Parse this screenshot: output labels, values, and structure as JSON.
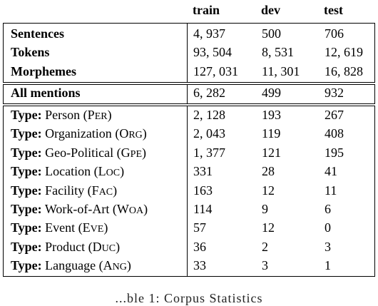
{
  "columns": {
    "train": "train",
    "dev": "dev",
    "test": "test"
  },
  "summary": [
    {
      "label": "Sentences",
      "train": "4, 937",
      "dev": "500",
      "test": "706"
    },
    {
      "label": "Tokens",
      "train": "93, 504",
      "dev": "8, 531",
      "test": "12, 619"
    },
    {
      "label": "Morphemes",
      "train": "127, 031",
      "dev": "11, 301",
      "test": "16, 828"
    }
  ],
  "mentions": {
    "label": "All mentions",
    "train": "6, 282",
    "dev": "499",
    "test": "932"
  },
  "type_prefix": "Type:",
  "types": [
    {
      "name": "Person",
      "abbr_first": "P",
      "abbr_rest": "er",
      "train": "2, 128",
      "dev": "193",
      "test": "267"
    },
    {
      "name": "Organization",
      "abbr_first": "O",
      "abbr_rest": "rg",
      "train": "2, 043",
      "dev": "119",
      "test": "408"
    },
    {
      "name": "Geo-Political",
      "abbr_first": "G",
      "abbr_rest": "pe",
      "train": "1, 377",
      "dev": "121",
      "test": "195"
    },
    {
      "name": "Location",
      "abbr_first": "L",
      "abbr_rest": "oc",
      "train": "331",
      "dev": "28",
      "test": "41"
    },
    {
      "name": "Facility",
      "abbr_first": "F",
      "abbr_rest": "ac",
      "train": "163",
      "dev": "12",
      "test": "11"
    },
    {
      "name": "Work-of-Art",
      "abbr_first": "W",
      "abbr_rest": "oa",
      "train": "114",
      "dev": "9",
      "test": "6"
    },
    {
      "name": "Event",
      "abbr_first": "E",
      "abbr_rest": "ve",
      "train": "57",
      "dev": "12",
      "test": "0"
    },
    {
      "name": "Product",
      "abbr_first": "D",
      "abbr_rest": "uc",
      "train": "36",
      "dev": "2",
      "test": "3"
    },
    {
      "name": "Language",
      "abbr_first": "A",
      "abbr_rest": "ng",
      "train": "33",
      "dev": "3",
      "test": "1"
    }
  ],
  "caption": "...ble 1: Corpus Statistics"
}
